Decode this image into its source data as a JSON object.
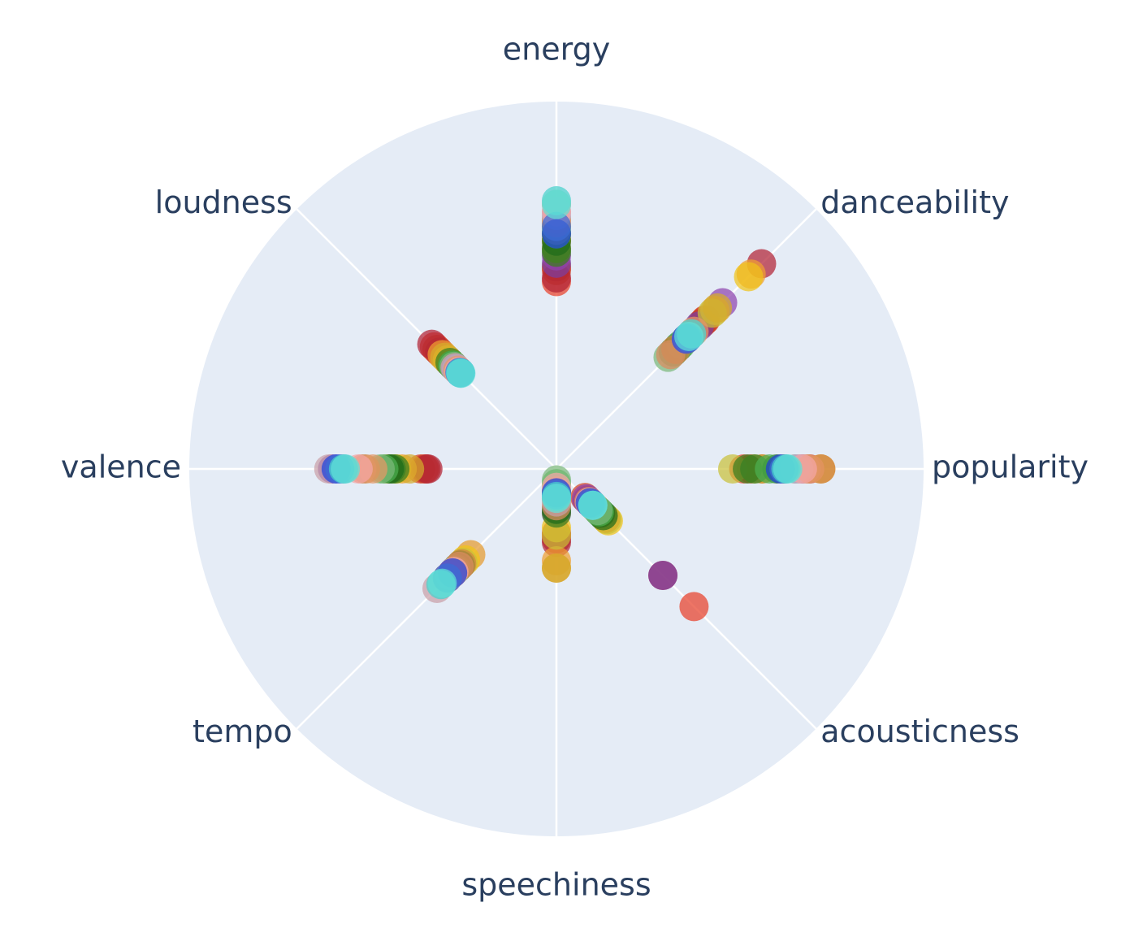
{
  "chart_data": {
    "type": "scatter",
    "subtype": "polar",
    "title": "",
    "angular_axis": {
      "categories": [
        "energy",
        "danceability",
        "popularity",
        "acousticness",
        "speechiness",
        "tempo",
        "valence",
        "loudness"
      ],
      "direction": "clockwise",
      "rotation": "energy at top"
    },
    "radial_range": [
      0,
      1
    ],
    "radial_ticks_visible": false,
    "background_color": "#e5ecf6",
    "grid_color": "#ffffff",
    "label_color": "#2a3f5f",
    "point_opacity": 0.72,
    "series": [
      {
        "color": "#e8402a",
        "values": [
          0.51,
          0.57,
          0.51,
          0.53,
          0.18,
          0.405,
          0.36,
          0.47
        ]
      },
      {
        "color": "#d64223",
        "values": [
          0.54,
          0.575,
          0.53,
          0.11,
          0.175,
          0.395,
          0.37,
          0.46
        ]
      },
      {
        "color": "#c0392b",
        "values": [
          0.55,
          0.56,
          0.56,
          0.12,
          0.19,
          0.42,
          0.355,
          0.45
        ]
      },
      {
        "color": "#b22234",
        "values": [
          0.52,
          0.79,
          0.69,
          0.41,
          0.2,
          0.38,
          0.35,
          0.48
        ]
      },
      {
        "color": "#7b3fa0",
        "values": [
          0.56,
          0.55,
          0.67,
          0.41,
          0.08,
          0.39,
          0.61,
          0.41
        ]
      },
      {
        "color": "#8e44ad",
        "values": [
          0.58,
          0.64,
          0.62,
          0.115,
          0.12,
          0.4,
          0.58,
          0.42
        ]
      },
      {
        "color": "#f0a030",
        "values": [
          0.62,
          0.75,
          0.72,
          0.14,
          0.25,
          0.37,
          0.42,
          0.44
        ]
      },
      {
        "color": "#e59a2e",
        "values": [
          0.6,
          0.61,
          0.62,
          0.15,
          0.27,
          0.33,
          0.46,
          0.4
        ]
      },
      {
        "color": "#f0c419",
        "values": [
          0.63,
          0.74,
          0.54,
          0.2,
          0.16,
          0.35,
          0.435,
          0.42
        ]
      },
      {
        "color": "#c9c13a",
        "values": [
          0.64,
          0.6,
          0.48,
          0.195,
          0.18,
          0.36,
          0.445,
          0.41
        ]
      },
      {
        "color": "#d4ac2b",
        "values": [
          0.66,
          0.62,
          0.56,
          0.19,
          0.27,
          0.38,
          0.4,
          0.43
        ]
      },
      {
        "color": "#2e7d32",
        "values": [
          0.6,
          0.47,
          0.54,
          0.16,
          0.06,
          0.37,
          0.45,
          0.4
        ]
      },
      {
        "color": "#3a7d1e",
        "values": [
          0.59,
          0.45,
          0.52,
          0.17,
          0.12,
          0.395,
          0.44,
          0.41
        ]
      },
      {
        "color": "#1e6b1a",
        "values": [
          0.62,
          0.5,
          0.6,
          0.18,
          0.11,
          0.38,
          0.455,
          0.395
        ]
      },
      {
        "color": "#4caf50",
        "values": [
          0.64,
          0.48,
          0.58,
          0.165,
          0.04,
          0.385,
          0.47,
          0.4
        ]
      },
      {
        "color": "#7cb87a",
        "values": [
          0.65,
          0.43,
          0.65,
          0.16,
          0.03,
          0.39,
          0.48,
          0.395
        ]
      },
      {
        "color": "#cd853f",
        "values": [
          0.68,
          0.46,
          0.72,
          0.13,
          0.08,
          0.365,
          0.52,
          0.39
        ]
      },
      {
        "color": "#d98c5f",
        "values": [
          0.67,
          0.44,
          0.68,
          0.125,
          0.1,
          0.375,
          0.53,
          0.38
        ]
      },
      {
        "color": "#c9a0a8",
        "values": [
          0.7,
          0.51,
          0.66,
          0.135,
          0.09,
          0.46,
          0.62,
          0.385
        ]
      },
      {
        "color": "#b8a6c9",
        "values": [
          0.69,
          0.52,
          0.65,
          0.14,
          0.07,
          0.41,
          0.6,
          0.39
        ]
      },
      {
        "color": "#e59866",
        "values": [
          0.72,
          0.53,
          0.69,
          0.13,
          0.06,
          0.4,
          0.5,
          0.38
        ]
      },
      {
        "color": "#f4a6a6",
        "values": [
          0.7,
          0.5,
          0.67,
          0.128,
          0.05,
          0.395,
          0.54,
          0.375
        ]
      },
      {
        "color": "#1f3fd6",
        "values": [
          0.64,
          0.5,
          0.61,
          0.13,
          0.065,
          0.4,
          0.6,
          0.37
        ]
      },
      {
        "color": "#3b6bd6",
        "values": [
          0.66,
          0.505,
          0.62,
          0.135,
          0.07,
          0.42,
          0.59,
          0.372
        ]
      },
      {
        "color": "#48d1cc",
        "values": [
          0.73,
          0.52,
          0.625,
          0.14,
          0.075,
          0.445,
          0.58,
          0.37
        ]
      },
      {
        "color": "#5fe0d8",
        "values": [
          0.72,
          0.51,
          0.63,
          0.14,
          0.08,
          0.44,
          0.575,
          0.368
        ]
      }
    ]
  }
}
